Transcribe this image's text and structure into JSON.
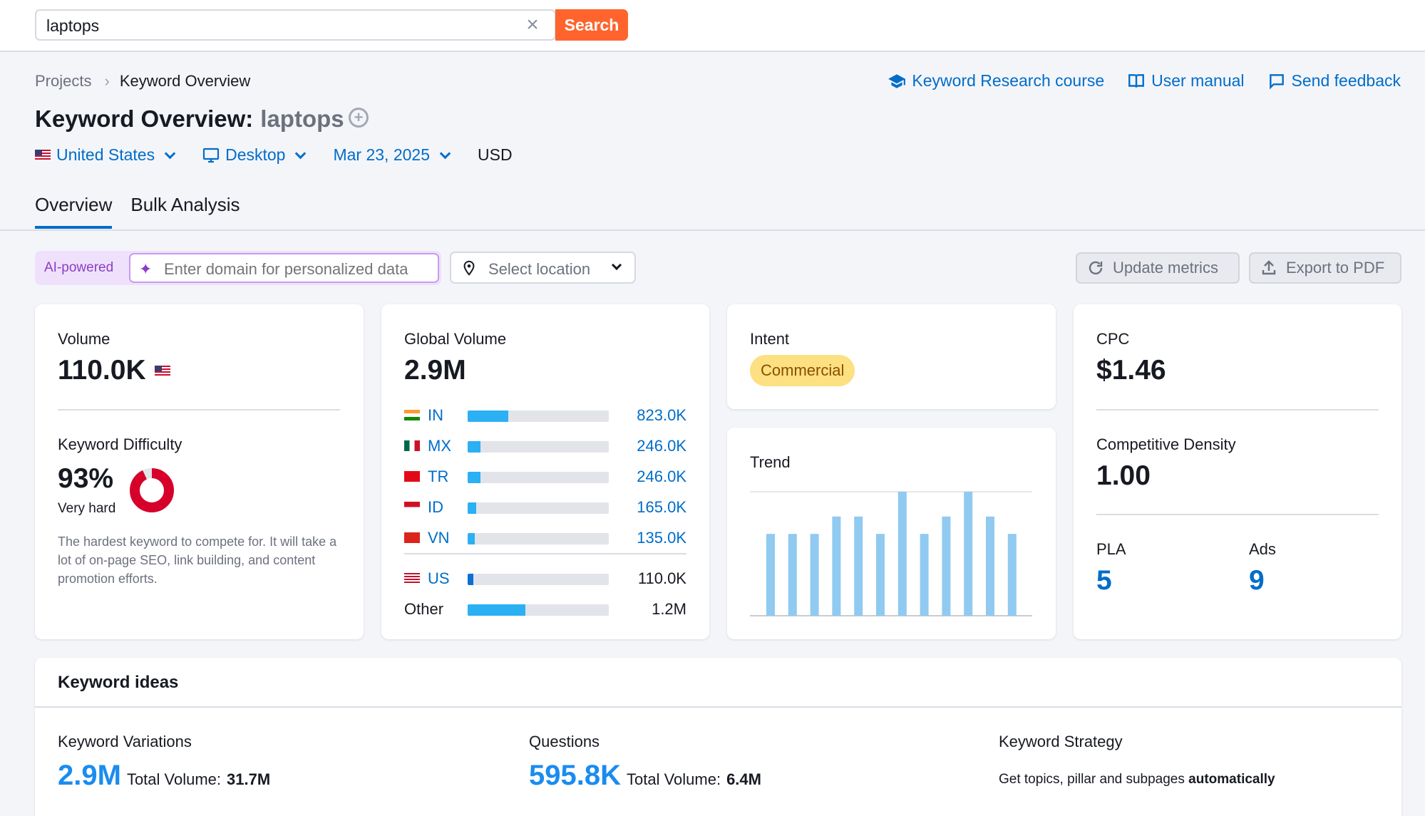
{
  "search": {
    "value": "laptops",
    "button": "Search"
  },
  "breadcrumb": {
    "parent": "Projects",
    "current": "Keyword Overview"
  },
  "toplinks": {
    "course": "Keyword Research course",
    "manual": "User manual",
    "feedback": "Send feedback"
  },
  "title": {
    "prefix": "Keyword Overview:",
    "keyword": "laptops"
  },
  "filters": {
    "country": "United States",
    "device": "Desktop",
    "date": "Mar 23, 2025",
    "currency": "USD"
  },
  "tabs": [
    "Overview",
    "Bulk Analysis"
  ],
  "ai": {
    "label": "AI-powered",
    "placeholder": "Enter domain for personalized data",
    "location": "Select location"
  },
  "actions": {
    "update": "Update metrics",
    "export": "Export to PDF"
  },
  "volume": {
    "label": "Volume",
    "value": "110.0K"
  },
  "difficulty": {
    "label": "Keyword Difficulty",
    "value": "93%",
    "level": "Very hard",
    "percent": 93,
    "description": "The hardest keyword to compete for. It will take a lot of on-page SEO, link building, and content promotion efforts."
  },
  "global": {
    "label": "Global Volume",
    "value": "2.9M",
    "rows": [
      {
        "code": "IN",
        "value": "823.0K",
        "share": 0.29
      },
      {
        "code": "MX",
        "value": "246.0K",
        "share": 0.09
      },
      {
        "code": "TR",
        "value": "246.0K",
        "share": 0.09
      },
      {
        "code": "ID",
        "value": "165.0K",
        "share": 0.06
      },
      {
        "code": "VN",
        "value": "135.0K",
        "share": 0.05
      }
    ],
    "us": {
      "code": "US",
      "value": "110.0K",
      "share": 0.04
    },
    "other": {
      "code": "Other",
      "value": "1.2M",
      "share": 0.41
    }
  },
  "intent": {
    "label": "Intent",
    "value": "Commercial"
  },
  "trend": {
    "label": "Trend",
    "values": [
      0.66,
      0.66,
      0.66,
      0.8,
      0.8,
      0.66,
      1.0,
      0.66,
      0.8,
      1.0,
      0.8,
      0.66
    ]
  },
  "cpc": {
    "label": "CPC",
    "value": "$1.46"
  },
  "density": {
    "label": "Competitive Density",
    "value": "1.00"
  },
  "pla": {
    "label": "PLA",
    "value": "5"
  },
  "ads": {
    "label": "Ads",
    "value": "9"
  },
  "ideas": {
    "title": "Keyword ideas",
    "variations": {
      "label": "Keyword Variations",
      "value": "2.9M",
      "total_label": "Total Volume:",
      "total": "31.7M"
    },
    "questions": {
      "label": "Questions",
      "value": "595.8K",
      "total_label": "Total Volume:",
      "total": "6.4M"
    },
    "strategy": {
      "label": "Keyword Strategy",
      "text": "Get topics, pillar and subpages",
      "bold": "automatically"
    }
  },
  "colors": {
    "accent": "#006dca",
    "orange": "#ff642d",
    "bar": "#2bb0f4",
    "trend": "#90caf0",
    "difficulty": "#d6002a"
  }
}
